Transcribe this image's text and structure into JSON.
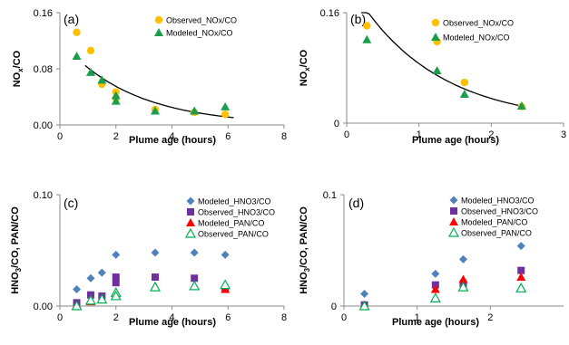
{
  "chart_data": [
    {
      "panel_label": "(a)",
      "type": "scatter",
      "xlabel": "Plume age (hours)",
      "ylabel": "NOx/CO",
      "ylabel_parts": [
        "NO",
        "x",
        "/CO"
      ],
      "xlim": [
        0,
        8
      ],
      "ylim": [
        0,
        0.16
      ],
      "xticks": [
        "0",
        "2",
        "4",
        "6",
        "8"
      ],
      "yticks": [
        "0.00",
        "0.08",
        "0.16"
      ],
      "legend_position": "top-right",
      "series": [
        {
          "name": "Observed_NOx/CO",
          "marker": "circle",
          "color": "#FFC000",
          "x": [
            0.6,
            1.1,
            1.5,
            2.0,
            2.0,
            3.4,
            4.8,
            5.9
          ],
          "y": [
            0.132,
            0.106,
            0.058,
            0.047,
            0.038,
            0.022,
            0.018,
            0.015
          ]
        },
        {
          "name": "Modeled_NOx/CO",
          "marker": "triangle",
          "color": "#1B9E4B",
          "x": [
            0.6,
            1.1,
            1.5,
            2.0,
            2.0,
            3.4,
            4.8,
            5.9
          ],
          "y": [
            0.098,
            0.075,
            0.064,
            0.042,
            0.034,
            0.02,
            0.02,
            0.026
          ]
        }
      ],
      "trendline": {
        "type": "exponential",
        "x_from": 0.9,
        "x_to": 6.2,
        "a": 0.121,
        "b": 0.394
      }
    },
    {
      "panel_label": "(b)",
      "type": "scatter",
      "xlabel": "Plume age (hours)",
      "ylabel": "NOx/CO",
      "ylabel_parts": [
        "NO",
        "x",
        "/CO"
      ],
      "xlim": [
        0,
        3
      ],
      "ylim": [
        0,
        0.16
      ],
      "xticks": [
        "0",
        "1",
        "2",
        "3"
      ],
      "yticks": [
        "0",
        "0.16"
      ],
      "legend_position": "top-right",
      "series": [
        {
          "name": "Observed_NOx/CO",
          "marker": "circle",
          "color": "#FFC000",
          "x": [
            0.28,
            1.25,
            1.63,
            2.42
          ],
          "y": [
            0.141,
            0.118,
            0.059,
            0.024
          ]
        },
        {
          "name": "Modeled_NOx/CO",
          "marker": "triangle",
          "color": "#1B9E4B",
          "x": [
            0.28,
            1.25,
            1.63,
            2.42
          ],
          "y": [
            0.121,
            0.076,
            0.042,
            0.025
          ]
        }
      ],
      "trendline": {
        "type": "exponential",
        "x_from": 0.2,
        "x_to": 2.45,
        "a": 0.208,
        "b": 0.88
      }
    },
    {
      "panel_label": "(c)",
      "type": "scatter",
      "xlabel": "Plume age (hours)",
      "ylabel": "HNO3/CO, PAN/CO",
      "ylabel_parts": [
        "HNO",
        "3",
        "/CO, PAN/CO"
      ],
      "xlim": [
        0,
        8
      ],
      "ylim": [
        0,
        0.1
      ],
      "xticks": [
        "0",
        "2",
        "4",
        "6",
        "8"
      ],
      "yticks": [
        "0.00",
        "0.10"
      ],
      "legend_position": "top-right",
      "series": [
        {
          "name": "Modeled_HNO3/CO",
          "marker": "diamond",
          "color": "#4F81BD",
          "x": [
            0.6,
            1.1,
            1.5,
            2.0,
            3.4,
            4.8,
            5.9
          ],
          "y": [
            0.015,
            0.025,
            0.03,
            0.046,
            0.048,
            0.048,
            0.046
          ]
        },
        {
          "name": "Observed_HNO3/CO",
          "marker": "square",
          "color": "#7030A0",
          "x": [
            0.6,
            1.1,
            1.5,
            2.0,
            2.0,
            3.4,
            4.8,
            5.9
          ],
          "y": [
            0.003,
            0.01,
            0.009,
            0.026,
            0.021,
            0.026,
            0.025,
            0.015
          ]
        },
        {
          "name": "Modeled_PAN/CO",
          "marker": "triangle",
          "color": "#FF0000",
          "x": [
            0.6,
            1.1,
            1.5,
            2.0,
            3.4,
            4.8,
            5.9
          ],
          "y": [
            0.001,
            0.004,
            0.006,
            0.01,
            0.018,
            0.018,
            0.015
          ]
        },
        {
          "name": "Observed_PAN/CO",
          "marker": "triangle-open",
          "color": "#00B050",
          "x": [
            0.6,
            1.1,
            1.5,
            2.0,
            2.0,
            3.4,
            4.8,
            5.9
          ],
          "y": [
            0.0,
            0.005,
            0.006,
            0.012,
            0.009,
            0.017,
            0.018,
            0.019
          ]
        }
      ]
    },
    {
      "panel_label": "(d)",
      "type": "scatter",
      "xlabel": "Plume age (hours)",
      "ylabel": "HNO3/CO, PAN/CO",
      "ylabel_parts": [
        "HNO",
        "3",
        "/CO, PAN/CO"
      ],
      "xlim": [
        0,
        3
      ],
      "ylim": [
        0,
        0.1
      ],
      "xticks": [
        "0",
        "1",
        "2"
      ],
      "yticks": [
        "0",
        "0.1"
      ],
      "legend_position": "top-right",
      "series": [
        {
          "name": "Modeled_HNO3/CO",
          "marker": "diamond",
          "color": "#4F81BD",
          "x": [
            0.28,
            1.25,
            1.63,
            2.42
          ],
          "y": [
            0.011,
            0.029,
            0.042,
            0.054
          ]
        },
        {
          "name": "Observed_HNO3/CO",
          "marker": "square",
          "color": "#7030A0",
          "x": [
            0.28,
            1.25,
            1.63,
            2.42
          ],
          "y": [
            0.001,
            0.019,
            0.02,
            0.032
          ]
        },
        {
          "name": "Modeled_PAN/CO",
          "marker": "triangle",
          "color": "#FF0000",
          "x": [
            0.28,
            1.25,
            1.63,
            2.42
          ],
          "y": [
            0.001,
            0.015,
            0.024,
            0.026
          ]
        },
        {
          "name": "Observed_PAN/CO",
          "marker": "triangle-open",
          "color": "#00B050",
          "x": [
            0.28,
            1.25,
            1.63,
            2.42
          ],
          "y": [
            0.0,
            0.007,
            0.017,
            0.016
          ]
        }
      ]
    }
  ]
}
